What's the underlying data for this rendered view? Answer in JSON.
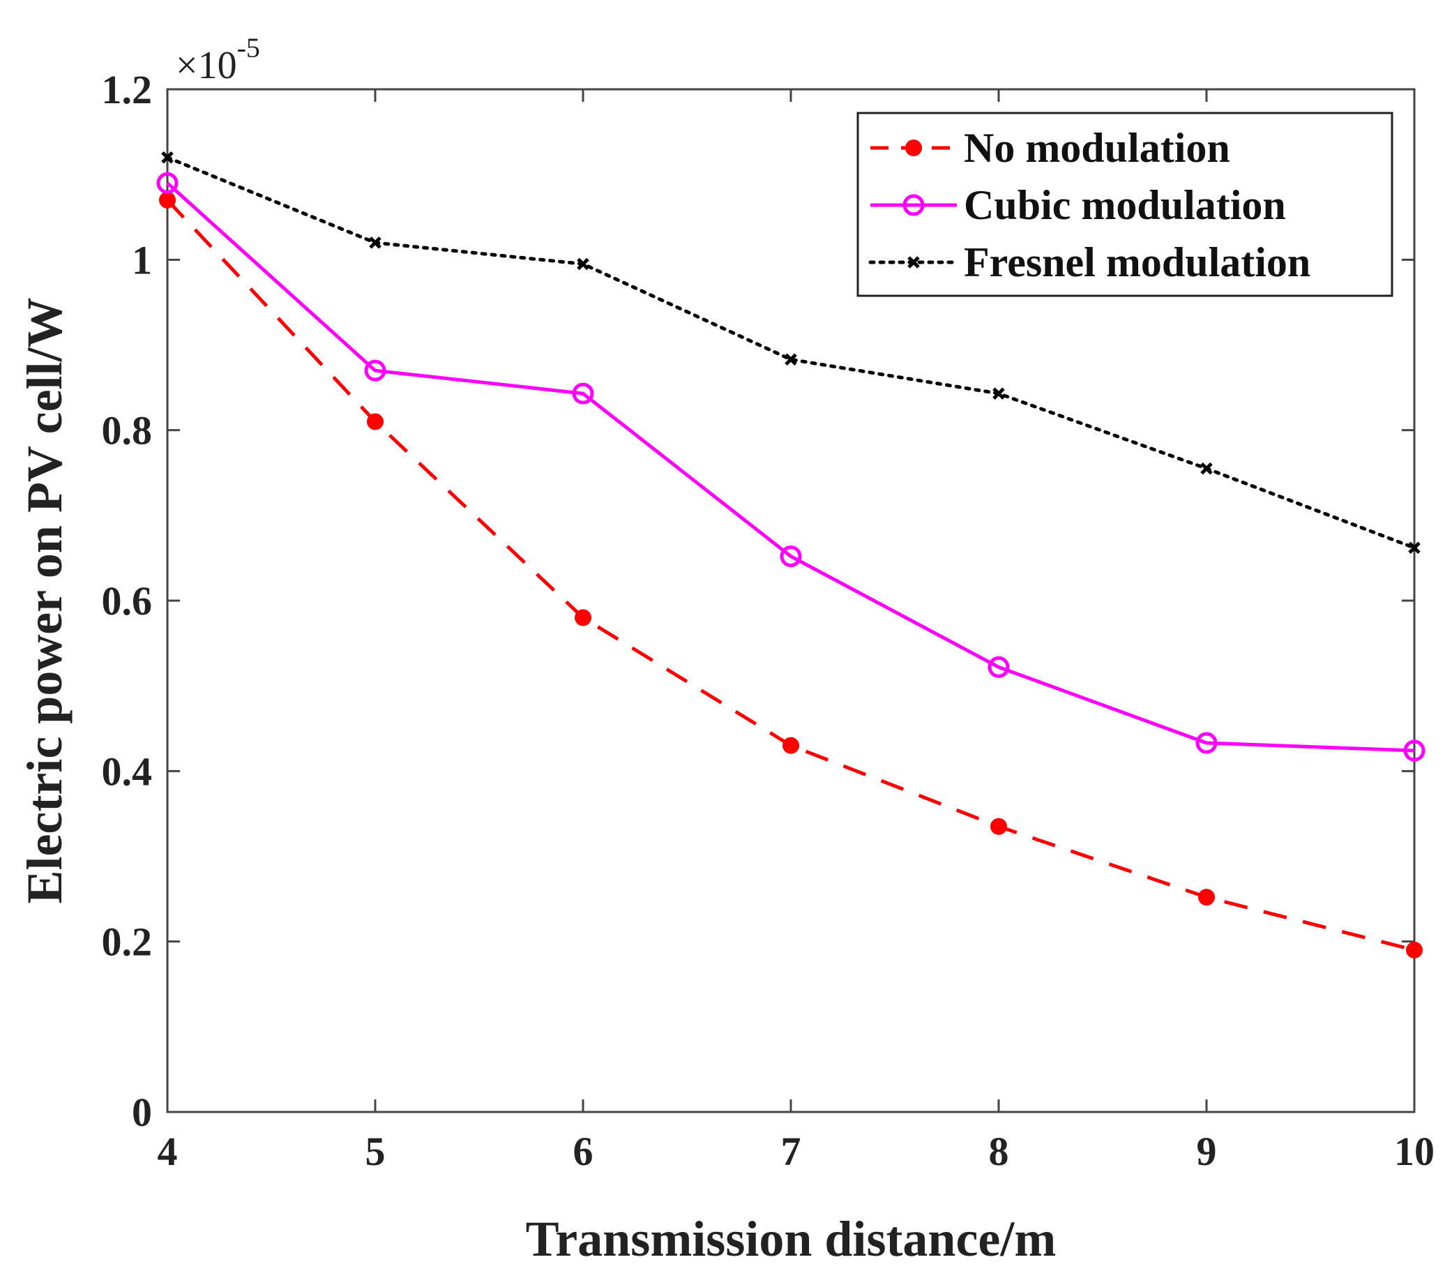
{
  "chart_data": {
    "type": "line",
    "title": "",
    "xlabel": "Transmission distance/m",
    "ylabel": "Electric power on PV cell/W",
    "x": [
      4,
      5,
      6,
      7,
      8,
      9,
      10
    ],
    "xlim": [
      4,
      10
    ],
    "ylim": [
      0,
      1.2
    ],
    "xticks": [
      "4",
      "5",
      "6",
      "7",
      "8",
      "9",
      "10"
    ],
    "yticks": [
      "0",
      "0.2",
      "0.4",
      "0.6",
      "0.8",
      "1",
      "1.2"
    ],
    "ytick_values": [
      0,
      0.2,
      0.4,
      0.6,
      0.8,
      1.0,
      1.2
    ],
    "y_exponent": {
      "base": "×10",
      "power": "-5"
    },
    "legend_position": "top-right",
    "grid": false,
    "series": [
      {
        "name": "No modulation",
        "color": "#ff0000",
        "line": "dashed",
        "marker": "filled-circle",
        "values": [
          1.07,
          0.81,
          0.58,
          0.43,
          0.335,
          0.252,
          0.19
        ]
      },
      {
        "name": "Cubic modulation",
        "color": "#ff00ff",
        "line": "solid",
        "marker": "open-circle",
        "values": [
          1.09,
          0.87,
          0.843,
          0.652,
          0.522,
          0.433,
          0.424
        ]
      },
      {
        "name": "Fresnel modulation",
        "color": "#000000",
        "line": "dotted",
        "marker": "x",
        "values": [
          1.12,
          1.02,
          0.995,
          0.883,
          0.843,
          0.755,
          0.662
        ]
      }
    ]
  }
}
